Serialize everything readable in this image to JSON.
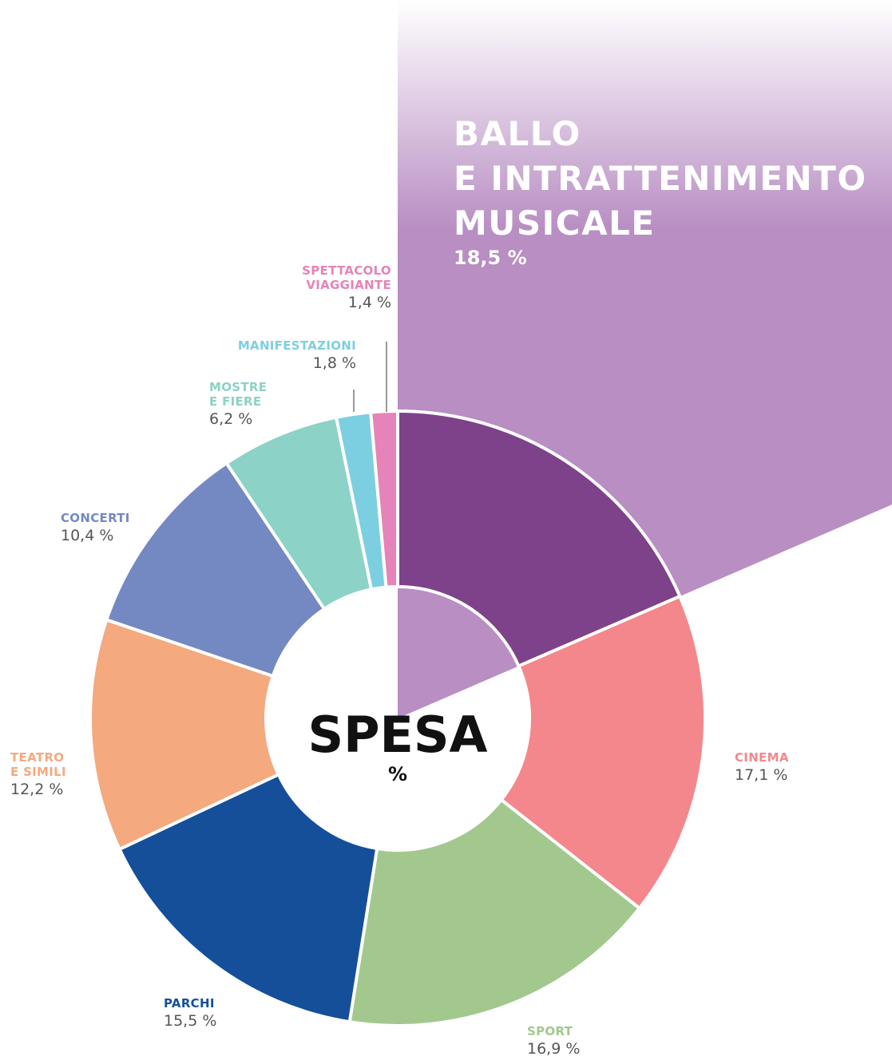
{
  "chart_data": {
    "type": "donut",
    "center_title": "SPESA",
    "center_subtitle": "%",
    "categories": [
      "BALLO\nE INTRATTENIMENTO\nMUSICALE",
      "CINEMA",
      "SPORT",
      "PARCHI",
      "TEATRO\nE SIMILI",
      "CONCERTI",
      "MOSTRE\nE FIERE",
      "MANIFESTAZIONI",
      "SPETTACOLO\nVIAGGIANTE"
    ],
    "values": [
      18.5,
      17.1,
      16.9,
      15.5,
      12.2,
      10.4,
      6.2,
      1.8,
      1.4
    ],
    "value_labels": [
      "18,5 %",
      "17,1 %",
      "16,9 %",
      "15,5 %",
      "12,2 %",
      "10,4 %",
      "6,2 %",
      "1,8 %",
      "1,4 %"
    ],
    "colors": [
      "#7d4289",
      "#f4878c",
      "#a3c88e",
      "#154f9a",
      "#f4a97f",
      "#7489c2",
      "#8cd2c6",
      "#7ccfe0",
      "#e683b8"
    ]
  }
}
